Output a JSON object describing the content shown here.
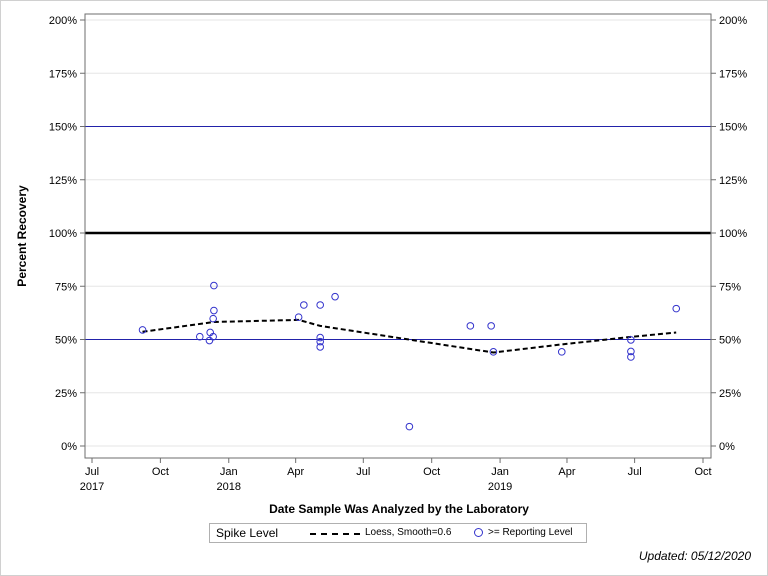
{
  "chart_data": {
    "type": "scatter",
    "xlabel": "Date Sample Was Analyzed by the Laboratory",
    "ylabel": "Percent Recovery",
    "ylim": [
      0,
      200
    ],
    "xlim": [
      "2017-07-01",
      "2019-10-01"
    ],
    "y_ticks": [
      "0%",
      "25%",
      "50%",
      "75%",
      "100%",
      "125%",
      "150%",
      "175%",
      "200%"
    ],
    "x_ticks": [
      {
        "date": "2017-07-01",
        "label": "Jul",
        "year": "2017"
      },
      {
        "date": "2017-10-01",
        "label": "Oct",
        "year": ""
      },
      {
        "date": "2018-01-01",
        "label": "Jan",
        "year": "2018"
      },
      {
        "date": "2018-04-01",
        "label": "Apr",
        "year": ""
      },
      {
        "date": "2018-07-01",
        "label": "Jul",
        "year": ""
      },
      {
        "date": "2018-10-01",
        "label": "Oct",
        "year": ""
      },
      {
        "date": "2019-01-01",
        "label": "Jan",
        "year": "2019"
      },
      {
        "date": "2019-04-01",
        "label": "Apr",
        "year": ""
      },
      {
        "date": "2019-07-01",
        "label": "Jul",
        "year": ""
      },
      {
        "date": "2019-10-01",
        "label": "Oct",
        "year": ""
      }
    ],
    "reference_lines": [
      {
        "y": 50,
        "color": "#2222aa",
        "style": "thin"
      },
      {
        "y": 100,
        "color": "#000000",
        "style": "thick"
      },
      {
        "y": 150,
        "color": "#2222aa",
        "style": "thin"
      }
    ],
    "series": [
      {
        "name": ">= Reporting Level",
        "color": "#3333cc",
        "points": [
          {
            "x": "2017-09-07",
            "y": 54.5
          },
          {
            "x": "2017-11-23",
            "y": 51.3
          },
          {
            "x": "2017-12-06",
            "y": 49.5
          },
          {
            "x": "2017-12-07",
            "y": 53.3
          },
          {
            "x": "2017-12-11",
            "y": 51.3
          },
          {
            "x": "2017-12-11",
            "y": 59.8
          },
          {
            "x": "2017-12-12",
            "y": 63.6
          },
          {
            "x": "2017-12-12",
            "y": 75.3
          },
          {
            "x": "2018-04-05",
            "y": 60.5
          },
          {
            "x": "2018-04-12",
            "y": 66.2
          },
          {
            "x": "2018-05-04",
            "y": 66.2
          },
          {
            "x": "2018-05-04",
            "y": 50.9
          },
          {
            "x": "2018-05-04",
            "y": 49.0
          },
          {
            "x": "2018-05-04",
            "y": 46.5
          },
          {
            "x": "2018-05-24",
            "y": 70.1
          },
          {
            "x": "2018-09-01",
            "y": 9.1
          },
          {
            "x": "2018-11-22",
            "y": 56.4
          },
          {
            "x": "2018-12-20",
            "y": 56.4
          },
          {
            "x": "2018-12-23",
            "y": 44.2
          },
          {
            "x": "2019-03-25",
            "y": 44.2
          },
          {
            "x": "2019-06-26",
            "y": 49.8
          },
          {
            "x": "2019-06-26",
            "y": 44.4
          },
          {
            "x": "2019-06-26",
            "y": 41.8
          },
          {
            "x": "2019-08-26",
            "y": 64.5
          }
        ]
      },
      {
        "name": "Loess, Smooth=0.6",
        "color": "#000000",
        "points": [
          {
            "x": "2017-09-07",
            "y": 53.6
          },
          {
            "x": "2017-12-12",
            "y": 58.2
          },
          {
            "x": "2018-04-05",
            "y": 59.2
          },
          {
            "x": "2018-05-04",
            "y": 56.4
          },
          {
            "x": "2018-12-23",
            "y": 43.9
          },
          {
            "x": "2019-03-25",
            "y": 47.7
          },
          {
            "x": "2019-06-26",
            "y": 51.2
          },
          {
            "x": "2019-08-26",
            "y": 53.3
          }
        ]
      }
    ],
    "legend_title": "Spike Level",
    "legend_position": "bottom"
  },
  "footer": {
    "updated": "Updated: 05/12/2020"
  }
}
